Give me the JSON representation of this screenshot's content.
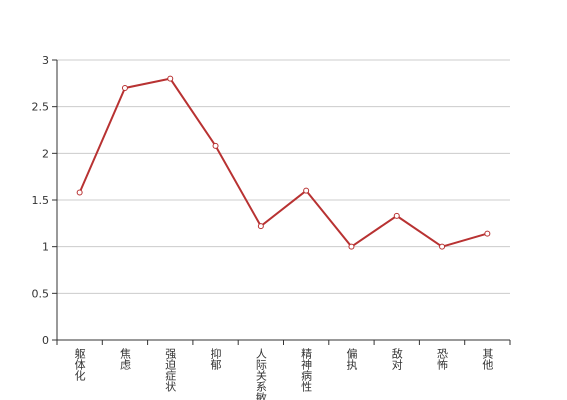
{
  "chart_data": {
    "type": "line",
    "categories": [
      "躯体化",
      "焦虑",
      "强迫症状",
      "抑郁",
      "人际关系敏感",
      "精神病性",
      "偏执",
      "敌对",
      "恐怖",
      "其他"
    ],
    "series": [
      {
        "color": "#b83232",
        "values": [
          1.58,
          2.7,
          2.8,
          2.08,
          1.22,
          1.6,
          1.0,
          1.33,
          1.0,
          1.14
        ]
      }
    ],
    "ylim": [
      0,
      3
    ],
    "yticks": [
      0,
      0.5,
      1,
      1.5,
      2,
      2.5,
      3
    ],
    "grid": true
  }
}
